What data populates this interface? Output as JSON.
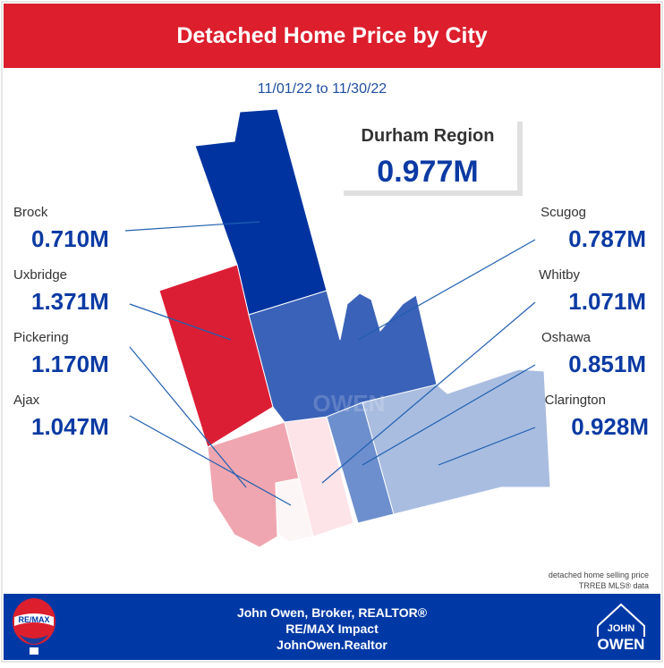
{
  "header": {
    "title": "Detached Home Price by City"
  },
  "date_range": "11/01/22 to 11/30/22",
  "region": {
    "name": "Durham Region",
    "price": "0.977M"
  },
  "cities": [
    {
      "name": "Brock",
      "price": "0.710M"
    },
    {
      "name": "Uxbridge",
      "price": "1.371M"
    },
    {
      "name": "Pickering",
      "price": "1.170M"
    },
    {
      "name": "Ajax",
      "price": "1.047M"
    },
    {
      "name": "Scugog",
      "price": "0.787M"
    },
    {
      "name": "Whitby",
      "price": "1.071M"
    },
    {
      "name": "Oshawa",
      "price": "0.851M"
    },
    {
      "name": "Clarington",
      "price": "0.928M"
    }
  ],
  "notes": [
    "detached home selling price",
    "TRREB MLS® data"
  ],
  "footer": {
    "name": "John Owen, Broker, REALTOR®",
    "brokerage": "RE/MAX Impact",
    "website": "JohnOwen.Realtor"
  },
  "logos": {
    "remax": "RE/MAX",
    "john": "JOHN",
    "owen": "OWEN"
  }
}
